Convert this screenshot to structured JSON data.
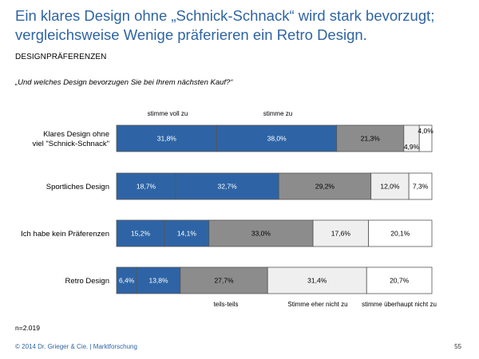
{
  "title_line1": "Ein klares Design ohne „Schnick-Schnack“ wird stark bevorzugt;",
  "title_line2": "vergleichsweise Wenige präferieren ein Retro Design.",
  "section_label": "DESIGNPRÄFERENZEN",
  "question": "„Und welches Design bevorzugen Sie bei Ihrem nächsten Kauf?“",
  "sample_size": "n=2.019",
  "footer": "© 2014 Dr. Grieger & Cie. | Marktforschung",
  "page_number": "55",
  "colors": {
    "stimme_voll_zu": "#2e64a5",
    "stimme_zu": "#2e64a5",
    "teils_teils": "#8c8c8c",
    "stimme_eher_nicht_zu": "#efefef",
    "stimme_ueberhaupt_nicht_zu": "#ffffff",
    "title": "#2f64a3"
  },
  "chart_data": {
    "type": "bar",
    "orientation": "horizontal",
    "stacked": true,
    "percent": true,
    "categories": [
      [
        "Klares Design ohne",
        "viel \"Schnick-Schnack\""
      ],
      [
        "Sportliches Design"
      ],
      [
        "Ich  habe kein Präferenzen"
      ],
      [
        "Retro Design"
      ]
    ],
    "series": [
      {
        "name": "stimme voll zu",
        "values": [
          31.8,
          18.7,
          15.2,
          6.4
        ],
        "labels": [
          "31,8%",
          "18,7%",
          "15,2%",
          "6,4%"
        ]
      },
      {
        "name": "stimme zu",
        "values": [
          38.0,
          32.7,
          14.1,
          13.8
        ],
        "labels": [
          "38,0%",
          "32,7%",
          "14,1%",
          "13,8%"
        ]
      },
      {
        "name": "teils-teils",
        "values": [
          21.3,
          29.2,
          33.0,
          27.7
        ],
        "labels": [
          "21,3%",
          "29,2%",
          "33,0%",
          "27,7%"
        ]
      },
      {
        "name": "Stimme eher nicht zu",
        "values": [
          4.9,
          12.0,
          17.6,
          31.4
        ],
        "labels": [
          "4,9%",
          "12,0%",
          "17,6%",
          "31,4%"
        ]
      },
      {
        "name": "stimme überhaupt  nicht zu",
        "values": [
          4.0,
          7.3,
          20.1,
          20.7
        ],
        "labels": [
          "4,0%",
          "7,3%",
          "20,1%",
          "20,7%"
        ]
      }
    ],
    "legend_position": "stimme voll zu / stimme zu above the first bar; teils-teils / Stimme eher nicht zu / stimme überhaupt nicht zu below the last bar"
  }
}
